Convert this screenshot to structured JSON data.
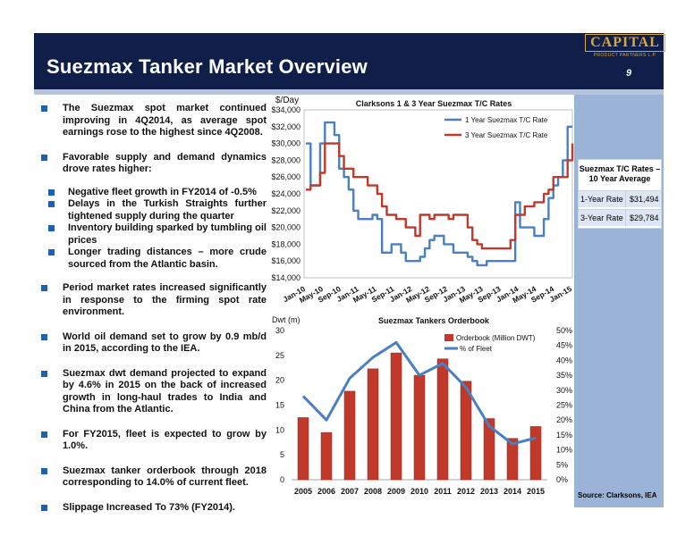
{
  "header": {
    "title": "Suezmax Tanker Market Overview",
    "page_number": "9",
    "logo_text": "CAPITAL",
    "logo_subtext": "PRODUCT PARTNERS L.P."
  },
  "bullets": [
    {
      "text": "The Suezmax spot market continued improving in 4Q2014, as average spot earnings rose to the highest since 4Q2008."
    },
    {
      "text": "Favorable supply and demand dynamics drove rates higher:",
      "sub": [
        "Negative fleet growth in FY2014 of -0.5%",
        "Delays in the Turkish Straights further tightened supply during the quarter",
        "Inventory building sparked by tumbling oil prices",
        "Longer trading distances – more crude sourced from the Atlantic basin."
      ]
    },
    {
      "text": "Period market rates increased significantly in response to the firming spot rate environment."
    },
    {
      "text": "World oil demand set to grow by 0.9 mb/d in 2015, according to the IEA."
    },
    {
      "text": "Suezmax dwt demand projected to expand by 4.6% in 2015 on the back of increased growth in long-haul trades to India and China from the Atlantic."
    },
    {
      "text": "For FY2015, fleet is expected to grow by 1.0%."
    },
    {
      "text": "Suezmax tanker orderbook through 2018 corresponding to 14.0% of current fleet."
    },
    {
      "text": "Slippage Increased To 73% (FY2014)."
    }
  ],
  "avg_box": {
    "title": "Suezmax T/C Rates – 10 Year Average",
    "rows": [
      {
        "label": "1-Year Rate",
        "value": "$31,494"
      },
      {
        "label": "3-Year Rate",
        "value": "$29,784"
      }
    ]
  },
  "source": "Source: Clarksons, IEA",
  "colors": {
    "header_bg": "#0f1f4a",
    "series_1yr": "#4a7fc1",
    "series_3yr": "#c0392b",
    "bar": "#c0392b",
    "fleet_line": "#4a7fc1",
    "bullet": "#1f5fb0"
  },
  "chart_data": [
    {
      "type": "line",
      "title": "Clarksons 1 & 3 Year Suezmax T/C Rates",
      "ylabel": "$/Day",
      "ylim": [
        14000,
        34000
      ],
      "yticks": [
        "$14,000",
        "$16,000",
        "$18,000",
        "$20,000",
        "$22,000",
        "$24,000",
        "$26,000",
        "$28,000",
        "$30,000",
        "$32,000",
        "$34,000"
      ],
      "xticks": [
        "Jan-10",
        "May-10",
        "Sep-10",
        "Jan-11",
        "May-11",
        "Sep-11",
        "Jan-12",
        "May-12",
        "Sep-12",
        "Jan-13",
        "May-13",
        "Sep-13",
        "Jan-14",
        "May-14",
        "Sep-14",
        "Jan-15"
      ],
      "legend_position": "top-right",
      "series": [
        {
          "name": "1 Year Suezmax T/C Rate",
          "values": [
            30000,
            25000,
            25000,
            30000,
            32500,
            32500,
            31000,
            27000,
            26000,
            24500,
            22000,
            21000,
            21000,
            21000,
            21500,
            21000,
            17000,
            17000,
            18000,
            18000,
            17000,
            16000,
            16000,
            16000,
            16500,
            17500,
            18500,
            19000,
            19000,
            18000,
            18000,
            17000,
            17000,
            17000,
            16500,
            16000,
            15500,
            15500,
            16000,
            16000,
            16000,
            16000,
            16000,
            16000,
            23000,
            20000,
            20000,
            20000,
            19000,
            19000,
            21000,
            23500,
            25000,
            26000,
            28000,
            32000,
            32000
          ]
        },
        {
          "name": "3 Year Suezmax T/C Rate",
          "values": [
            24500,
            25000,
            25000,
            26500,
            30000,
            30000,
            30000,
            28500,
            27000,
            27000,
            26000,
            26000,
            26000,
            25000,
            25000,
            24000,
            22500,
            21500,
            21500,
            21000,
            21000,
            20000,
            20000,
            19000,
            21500,
            21500,
            21000,
            21500,
            21500,
            21500,
            21000,
            21500,
            21500,
            21500,
            20000,
            18500,
            18000,
            17500,
            17500,
            17500,
            17500,
            17500,
            17500,
            18500,
            21500,
            21500,
            22500,
            22500,
            23000,
            23000,
            24000,
            24500,
            26000,
            26000,
            26000,
            28000,
            30000
          ]
        }
      ]
    },
    {
      "type": "bar",
      "title": "Suezmax Tankers Orderbook",
      "ylabel": "Dwt (m)",
      "ylim": [
        0,
        30
      ],
      "y2lim": [
        0,
        50
      ],
      "categories": [
        "2005",
        "2006",
        "2007",
        "2008",
        "2009",
        "2010",
        "2011",
        "2012",
        "2013",
        "2014",
        "2015"
      ],
      "legend_position": "top-right",
      "series": [
        {
          "name": "Orderbook (Million DWT)",
          "axis": "left",
          "values": [
            12.5,
            9.5,
            17.8,
            22.3,
            25.5,
            21.0,
            24.3,
            19.8,
            12.3,
            8.3,
            10.7
          ]
        },
        {
          "name": "% of Fleet",
          "axis": "right",
          "values": [
            28,
            20,
            34,
            41,
            46,
            35,
            39,
            31,
            18,
            12,
            14
          ]
        }
      ]
    }
  ]
}
